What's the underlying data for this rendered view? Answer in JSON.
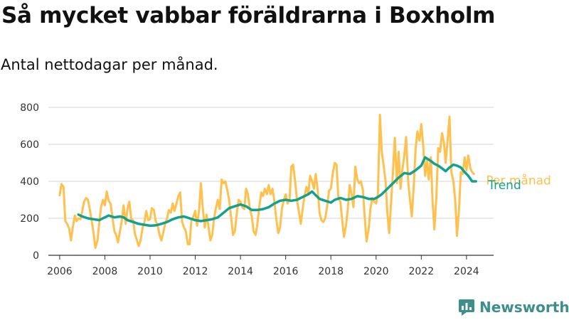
{
  "title": "Så mycket vabbar föräldrarna i Boxholm",
  "subtitle": "Antal nettodagar per månad.",
  "brand": {
    "name": "Newsworthy",
    "icon": "newsworthy-logo-icon"
  },
  "colors": {
    "monthly": "#ffc04d",
    "trend": "#12a08f",
    "grid": "#d6d6d6",
    "axis": "#333333",
    "brand": "#3d8f88"
  },
  "chart_data": {
    "type": "line",
    "title": "Så mycket vabbar föräldrarna i Boxholm",
    "subtitle": "Antal nettodagar per månad.",
    "xlabel": "",
    "ylabel": "",
    "xlim": [
      2005.5,
      2025.2
    ],
    "ylim": [
      0,
      800
    ],
    "x_ticks": [
      2006,
      2008,
      2010,
      2012,
      2014,
      2016,
      2018,
      2020,
      2022,
      2024
    ],
    "y_ticks": [
      0,
      200,
      400,
      600,
      800
    ],
    "grid": "horizontal",
    "legend": "inline labels at right end of lines",
    "series": [
      {
        "name": "Per månad",
        "color": "#ffc04d",
        "points": [
          [
            2006.0,
            325
          ],
          [
            2006.08,
            385
          ],
          [
            2006.17,
            370
          ],
          [
            2006.25,
            185
          ],
          [
            2006.33,
            170
          ],
          [
            2006.42,
            145
          ],
          [
            2006.5,
            80
          ],
          [
            2006.58,
            150
          ],
          [
            2006.67,
            215
          ],
          [
            2006.75,
            185
          ],
          [
            2006.83,
            200
          ],
          [
            2006.92,
            195
          ],
          [
            2007.0,
            240
          ],
          [
            2007.08,
            290
          ],
          [
            2007.17,
            310
          ],
          [
            2007.25,
            300
          ],
          [
            2007.33,
            250
          ],
          [
            2007.42,
            185
          ],
          [
            2007.5,
            120
          ],
          [
            2007.58,
            40
          ],
          [
            2007.67,
            80
          ],
          [
            2007.75,
            170
          ],
          [
            2007.83,
            260
          ],
          [
            2007.92,
            300
          ],
          [
            2008.0,
            270
          ],
          [
            2008.08,
            345
          ],
          [
            2008.17,
            295
          ],
          [
            2008.25,
            280
          ],
          [
            2008.33,
            210
          ],
          [
            2008.42,
            130
          ],
          [
            2008.5,
            110
          ],
          [
            2008.58,
            70
          ],
          [
            2008.67,
            130
          ],
          [
            2008.75,
            190
          ],
          [
            2008.83,
            270
          ],
          [
            2008.92,
            170
          ],
          [
            2009.0,
            250
          ],
          [
            2009.08,
            290
          ],
          [
            2009.17,
            195
          ],
          [
            2009.25,
            190
          ],
          [
            2009.33,
            115
          ],
          [
            2009.42,
            80
          ],
          [
            2009.5,
            50
          ],
          [
            2009.58,
            80
          ],
          [
            2009.67,
            150
          ],
          [
            2009.75,
            180
          ],
          [
            2009.83,
            240
          ],
          [
            2009.92,
            190
          ],
          [
            2010.0,
            195
          ],
          [
            2010.08,
            255
          ],
          [
            2010.17,
            245
          ],
          [
            2010.25,
            185
          ],
          [
            2010.33,
            165
          ],
          [
            2010.42,
            110
          ],
          [
            2010.5,
            80
          ],
          [
            2010.58,
            120
          ],
          [
            2010.67,
            170
          ],
          [
            2010.75,
            200
          ],
          [
            2010.83,
            245
          ],
          [
            2010.92,
            230
          ],
          [
            2011.0,
            280
          ],
          [
            2011.08,
            240
          ],
          [
            2011.17,
            280
          ],
          [
            2011.25,
            320
          ],
          [
            2011.33,
            340
          ],
          [
            2011.42,
            180
          ],
          [
            2011.5,
            150
          ],
          [
            2011.58,
            130
          ],
          [
            2011.67,
            60
          ],
          [
            2011.75,
            60
          ],
          [
            2011.83,
            190
          ],
          [
            2011.92,
            210
          ],
          [
            2012.0,
            240
          ],
          [
            2012.08,
            160
          ],
          [
            2012.17,
            250
          ],
          [
            2012.25,
            390
          ],
          [
            2012.33,
            260
          ],
          [
            2012.42,
            150
          ],
          [
            2012.5,
            220
          ],
          [
            2012.58,
            160
          ],
          [
            2012.67,
            80
          ],
          [
            2012.75,
            110
          ],
          [
            2012.83,
            200
          ],
          [
            2012.92,
            260
          ],
          [
            2013.0,
            300
          ],
          [
            2013.08,
            250
          ],
          [
            2013.17,
            410
          ],
          [
            2013.25,
            390
          ],
          [
            2013.33,
            400
          ],
          [
            2013.42,
            350
          ],
          [
            2013.5,
            300
          ],
          [
            2013.58,
            210
          ],
          [
            2013.67,
            110
          ],
          [
            2013.75,
            130
          ],
          [
            2013.83,
            220
          ],
          [
            2013.92,
            300
          ],
          [
            2014.0,
            290
          ],
          [
            2014.08,
            260
          ],
          [
            2014.17,
            250
          ],
          [
            2014.25,
            360
          ],
          [
            2014.33,
            330
          ],
          [
            2014.42,
            250
          ],
          [
            2014.5,
            210
          ],
          [
            2014.58,
            130
          ],
          [
            2014.67,
            110
          ],
          [
            2014.75,
            170
          ],
          [
            2014.83,
            260
          ],
          [
            2014.92,
            340
          ],
          [
            2015.0,
            320
          ],
          [
            2015.08,
            360
          ],
          [
            2015.17,
            330
          ],
          [
            2015.25,
            380
          ],
          [
            2015.33,
            330
          ],
          [
            2015.42,
            360
          ],
          [
            2015.5,
            290
          ],
          [
            2015.58,
            200
          ],
          [
            2015.67,
            120
          ],
          [
            2015.75,
            150
          ],
          [
            2015.83,
            250
          ],
          [
            2015.92,
            300
          ],
          [
            2016.0,
            330
          ],
          [
            2016.08,
            280
          ],
          [
            2016.17,
            300
          ],
          [
            2016.25,
            480
          ],
          [
            2016.33,
            490
          ],
          [
            2016.42,
            400
          ],
          [
            2016.5,
            300
          ],
          [
            2016.58,
            240
          ],
          [
            2016.67,
            170
          ],
          [
            2016.75,
            250
          ],
          [
            2016.83,
            320
          ],
          [
            2016.92,
            370
          ],
          [
            2017.0,
            330
          ],
          [
            2017.08,
            430
          ],
          [
            2017.17,
            400
          ],
          [
            2017.25,
            360
          ],
          [
            2017.33,
            440
          ],
          [
            2017.42,
            350
          ],
          [
            2017.5,
            230
          ],
          [
            2017.58,
            190
          ],
          [
            2017.67,
            180
          ],
          [
            2017.75,
            200
          ],
          [
            2017.83,
            260
          ],
          [
            2017.92,
            350
          ],
          [
            2018.0,
            360
          ],
          [
            2018.08,
            440
          ],
          [
            2018.17,
            500
          ],
          [
            2018.25,
            490
          ],
          [
            2018.33,
            310
          ],
          [
            2018.42,
            290
          ],
          [
            2018.5,
            190
          ],
          [
            2018.58,
            100
          ],
          [
            2018.67,
            160
          ],
          [
            2018.75,
            250
          ],
          [
            2018.83,
            380
          ],
          [
            2018.92,
            330
          ],
          [
            2019.0,
            260
          ],
          [
            2019.08,
            480
          ],
          [
            2019.17,
            410
          ],
          [
            2019.25,
            390
          ],
          [
            2019.33,
            400
          ],
          [
            2019.42,
            350
          ],
          [
            2019.5,
            200
          ],
          [
            2019.58,
            75
          ],
          [
            2019.67,
            140
          ],
          [
            2019.75,
            250
          ],
          [
            2019.83,
            310
          ],
          [
            2019.92,
            290
          ],
          [
            2020.0,
            280
          ],
          [
            2020.08,
            330
          ],
          [
            2020.17,
            760
          ],
          [
            2020.25,
            560
          ],
          [
            2020.33,
            490
          ],
          [
            2020.42,
            400
          ],
          [
            2020.5,
            230
          ],
          [
            2020.58,
            120
          ],
          [
            2020.67,
            300
          ],
          [
            2020.75,
            460
          ],
          [
            2020.83,
            635
          ],
          [
            2020.92,
            390
          ],
          [
            2021.0,
            560
          ],
          [
            2021.08,
            360
          ],
          [
            2021.17,
            470
          ],
          [
            2021.25,
            540
          ],
          [
            2021.33,
            640
          ],
          [
            2021.42,
            400
          ],
          [
            2021.5,
            300
          ],
          [
            2021.58,
            210
          ],
          [
            2021.67,
            380
          ],
          [
            2021.75,
            580
          ],
          [
            2021.83,
            670
          ],
          [
            2021.92,
            620
          ],
          [
            2022.0,
            710
          ],
          [
            2022.08,
            600
          ],
          [
            2022.17,
            430
          ],
          [
            2022.25,
            520
          ],
          [
            2022.33,
            410
          ],
          [
            2022.42,
            530
          ],
          [
            2022.5,
            290
          ],
          [
            2022.58,
            140
          ],
          [
            2022.67,
            320
          ],
          [
            2022.75,
            580
          ],
          [
            2022.83,
            560
          ],
          [
            2022.92,
            660
          ],
          [
            2023.0,
            610
          ],
          [
            2023.08,
            500
          ],
          [
            2023.17,
            630
          ],
          [
            2023.25,
            750
          ],
          [
            2023.33,
            450
          ],
          [
            2023.42,
            400
          ],
          [
            2023.5,
            300
          ],
          [
            2023.58,
            105
          ],
          [
            2023.67,
            250
          ],
          [
            2023.75,
            450
          ],
          [
            2023.83,
            440
          ],
          [
            2023.92,
            530
          ],
          [
            2024.0,
            460
          ],
          [
            2024.08,
            540
          ],
          [
            2024.17,
            470
          ],
          [
            2024.25,
            450
          ],
          [
            2024.33,
            440
          ]
        ]
      },
      {
        "name": "Trend",
        "color": "#12a08f",
        "points": [
          [
            2006.83,
            220
          ],
          [
            2007.0,
            210
          ],
          [
            2007.25,
            200
          ],
          [
            2007.5,
            195
          ],
          [
            2007.75,
            190
          ],
          [
            2008.0,
            205
          ],
          [
            2008.17,
            215
          ],
          [
            2008.42,
            205
          ],
          [
            2008.67,
            210
          ],
          [
            2008.83,
            205
          ],
          [
            2009.0,
            190
          ],
          [
            2009.25,
            180
          ],
          [
            2009.5,
            170
          ],
          [
            2009.75,
            165
          ],
          [
            2010.0,
            160
          ],
          [
            2010.25,
            162
          ],
          [
            2010.5,
            170
          ],
          [
            2010.75,
            180
          ],
          [
            2011.0,
            195
          ],
          [
            2011.25,
            205
          ],
          [
            2011.5,
            210
          ],
          [
            2011.75,
            200
          ],
          [
            2012.0,
            190
          ],
          [
            2012.25,
            185
          ],
          [
            2012.5,
            190
          ],
          [
            2012.75,
            195
          ],
          [
            2013.0,
            205
          ],
          [
            2013.25,
            230
          ],
          [
            2013.5,
            255
          ],
          [
            2013.75,
            265
          ],
          [
            2014.0,
            275
          ],
          [
            2014.25,
            265
          ],
          [
            2014.5,
            245
          ],
          [
            2014.75,
            245
          ],
          [
            2015.0,
            250
          ],
          [
            2015.25,
            260
          ],
          [
            2015.5,
            280
          ],
          [
            2015.75,
            295
          ],
          [
            2016.0,
            300
          ],
          [
            2016.25,
            295
          ],
          [
            2016.5,
            300
          ],
          [
            2016.75,
            315
          ],
          [
            2017.0,
            330
          ],
          [
            2017.17,
            345
          ],
          [
            2017.33,
            325
          ],
          [
            2017.5,
            305
          ],
          [
            2017.75,
            295
          ],
          [
            2018.0,
            285
          ],
          [
            2018.17,
            300
          ],
          [
            2018.42,
            310
          ],
          [
            2018.67,
            300
          ],
          [
            2018.92,
            305
          ],
          [
            2019.17,
            320
          ],
          [
            2019.42,
            315
          ],
          [
            2019.67,
            305
          ],
          [
            2019.92,
            305
          ],
          [
            2020.08,
            315
          ],
          [
            2020.25,
            330
          ],
          [
            2020.5,
            360
          ],
          [
            2020.75,
            390
          ],
          [
            2021.0,
            420
          ],
          [
            2021.25,
            445
          ],
          [
            2021.5,
            440
          ],
          [
            2021.75,
            460
          ],
          [
            2022.0,
            485
          ],
          [
            2022.17,
            530
          ],
          [
            2022.42,
            510
          ],
          [
            2022.58,
            495
          ],
          [
            2022.75,
            485
          ],
          [
            2022.92,
            470
          ],
          [
            2023.08,
            455
          ],
          [
            2023.25,
            475
          ],
          [
            2023.42,
            490
          ],
          [
            2023.58,
            485
          ],
          [
            2023.75,
            475
          ],
          [
            2023.92,
            450
          ],
          [
            2024.08,
            430
          ],
          [
            2024.25,
            400
          ],
          [
            2024.42,
            400
          ]
        ]
      }
    ]
  }
}
